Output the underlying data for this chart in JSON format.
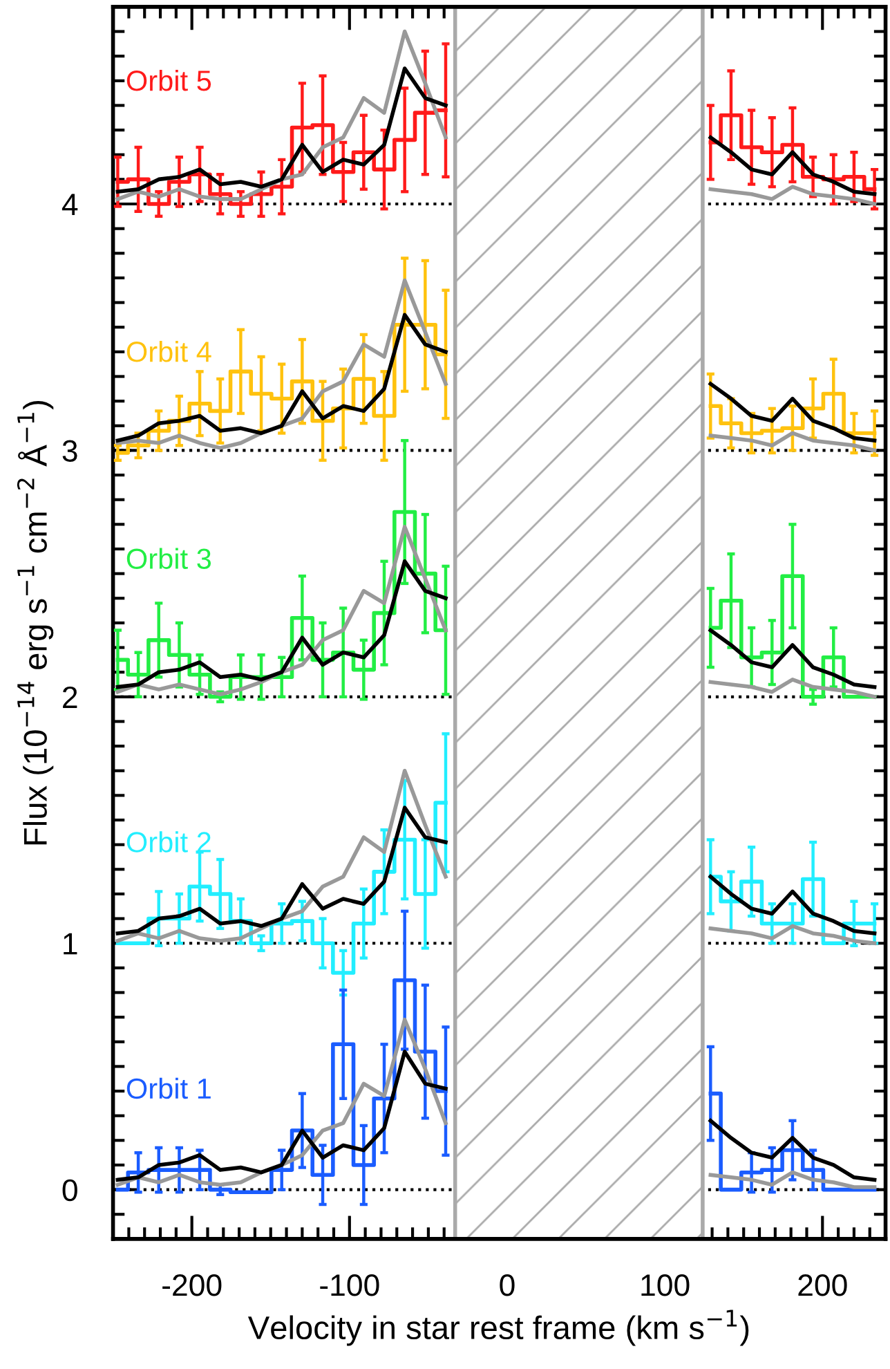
{
  "chart_data": {
    "type": "step",
    "xlabel": "Velocity in star rest frame (km s$^{−1}$)",
    "ylabel": "Flux (10$^{−14}$ erg s$^{−1}$ cm$^{−2}$ Å$^{−1}$)",
    "xlim": [
      -250,
      240
    ],
    "ylim": [
      -0.2,
      4.8
    ],
    "xticks": [
      -200,
      -100,
      0,
      100,
      200
    ],
    "yticks": [
      0,
      1,
      2,
      3,
      4
    ],
    "grid": false,
    "legend": false,
    "ref_lines": [
      {
        "axis": "y",
        "value": 0,
        "color": "#000000",
        "line_style": "dotted"
      },
      {
        "axis": "y",
        "value": 1,
        "color": "#000000",
        "line_style": "dotted"
      },
      {
        "axis": "y",
        "value": 2,
        "color": "#000000",
        "line_style": "dotted"
      },
      {
        "axis": "y",
        "value": 3,
        "color": "#000000",
        "line_style": "dotted"
      },
      {
        "axis": "y",
        "value": 4,
        "color": "#000000",
        "line_style": "dotted"
      }
    ],
    "bands": [
      {
        "axis": "x",
        "from": -33,
        "to": 124,
        "color": "#aaaaaa"
      }
    ],
    "series": [
      {
        "name": "Orbit 5",
        "color": "#ff1a1a",
        "x": [
          -247,
          -234,
          -221,
          -208,
          -195,
          -182,
          -169,
          -156,
          -143,
          -130,
          -117,
          -104,
          -91,
          -78,
          -65,
          -52,
          -39,
          45,
          129,
          142,
          155,
          168,
          181,
          194,
          207,
          220,
          233
        ],
        "values": [
          4.09,
          4.1,
          4.0,
          4.09,
          4.12,
          4.04,
          4.0,
          4.04,
          4.07,
          4.31,
          4.32,
          4.13,
          4.21,
          4.14,
          4.26,
          4.37,
          4.38,
          null,
          4.25,
          4.36,
          4.23,
          4.21,
          4.24,
          4.11,
          4.1,
          4.11,
          4.06
        ],
        "errors": [
          0.1,
          0.13,
          0.05,
          0.1,
          0.11,
          0.08,
          0.05,
          0.09,
          0.11,
          0.18,
          0.2,
          0.12,
          0.15,
          0.16,
          0.21,
          0.25,
          0.27,
          null,
          0.15,
          0.18,
          0.15,
          0.14,
          0.15,
          0.08,
          0.1,
          0.1,
          0.08
        ]
      },
      {
        "type": "line",
        "color": "#000000",
        "x": [
          -247,
          -234,
          -221,
          -208,
          -195,
          -182,
          -169,
          -156,
          -143,
          -130,
          -117,
          -104,
          -91,
          -78,
          -65,
          -52,
          -39,
          45,
          129,
          142,
          155,
          168,
          181,
          194,
          207,
          220,
          233
        ],
        "values": [
          4.05,
          4.06,
          4.1,
          4.11,
          4.14,
          4.08,
          4.09,
          4.07,
          4.1,
          4.24,
          4.13,
          4.18,
          4.16,
          4.24,
          4.55,
          4.43,
          4.4,
          null,
          4.27,
          4.21,
          4.14,
          4.12,
          4.21,
          4.12,
          4.09,
          4.05,
          4.04
        ]
      },
      {
        "type": "line",
        "color": "#999999",
        "x": [
          -247,
          -234,
          -221,
          -208,
          -195,
          -182,
          -169,
          -156,
          -143,
          -130,
          -117,
          -104,
          -91,
          -78,
          -65,
          -52,
          -39,
          45,
          129,
          142,
          155,
          168,
          181,
          194,
          207,
          220,
          233
        ],
        "values": [
          4.02,
          4.05,
          4.03,
          4.06,
          4.03,
          4.02,
          4.02,
          4.06,
          4.1,
          4.12,
          4.23,
          4.27,
          4.43,
          4.37,
          4.7,
          4.49,
          4.27,
          null,
          4.06,
          4.05,
          4.04,
          4.02,
          4.07,
          4.04,
          4.03,
          4.02,
          4.0
        ]
      },
      {
        "name": "Orbit 4",
        "color": "#ffc20e",
        "x": [
          -247,
          -234,
          -221,
          -208,
          -195,
          -182,
          -169,
          -156,
          -143,
          -130,
          -117,
          -104,
          -91,
          -78,
          -65,
          -52,
          -39,
          45,
          129,
          142,
          155,
          168,
          181,
          194,
          207,
          220,
          233
        ],
        "values": [
          2.99,
          3.02,
          3.08,
          3.12,
          3.19,
          3.16,
          3.32,
          3.23,
          3.21,
          3.28,
          3.12,
          3.17,
          3.29,
          3.14,
          3.51,
          3.51,
          3.39,
          null,
          3.18,
          3.11,
          3.07,
          3.08,
          3.09,
          3.17,
          3.23,
          3.07,
          3.07
        ],
        "errors": [
          0.03,
          0.05,
          0.08,
          0.1,
          0.13,
          0.13,
          0.17,
          0.15,
          0.14,
          0.17,
          0.16,
          0.16,
          0.18,
          0.18,
          0.27,
          0.26,
          0.26,
          null,
          0.13,
          0.1,
          0.08,
          0.09,
          0.09,
          0.12,
          0.14,
          0.08,
          0.09
        ]
      },
      {
        "type": "line",
        "color": "#000000",
        "x": [
          -247,
          -234,
          -221,
          -208,
          -195,
          -182,
          -169,
          -156,
          -143,
          -130,
          -117,
          -104,
          -91,
          -78,
          -65,
          -52,
          -39,
          45,
          129,
          142,
          155,
          168,
          181,
          194,
          207,
          220,
          233
        ],
        "values": [
          3.04,
          3.06,
          3.11,
          3.12,
          3.14,
          3.08,
          3.09,
          3.07,
          3.1,
          3.24,
          3.13,
          3.18,
          3.16,
          3.25,
          3.55,
          3.43,
          3.4,
          null,
          3.27,
          3.21,
          3.14,
          3.12,
          3.21,
          3.12,
          3.09,
          3.05,
          3.04
        ]
      },
      {
        "type": "line",
        "color": "#999999",
        "x": [
          -247,
          -234,
          -221,
          -208,
          -195,
          -182,
          -169,
          -156,
          -143,
          -130,
          -117,
          -104,
          -91,
          -78,
          -65,
          -52,
          -39,
          45,
          129,
          142,
          155,
          168,
          181,
          194,
          207,
          220,
          233
        ],
        "values": [
          3.03,
          3.04,
          3.03,
          3.06,
          3.03,
          3.01,
          3.03,
          3.07,
          3.1,
          3.13,
          3.24,
          3.28,
          3.43,
          3.38,
          3.69,
          3.48,
          3.27,
          null,
          3.06,
          3.05,
          3.04,
          3.02,
          3.07,
          3.04,
          3.03,
          3.02,
          3.0
        ]
      },
      {
        "name": "Orbit 3",
        "color": "#22ee44",
        "x": [
          -247,
          -234,
          -221,
          -208,
          -195,
          -182,
          -169,
          -156,
          -143,
          -130,
          -117,
          -104,
          -91,
          -78,
          -65,
          -52,
          -39,
          45,
          129,
          142,
          155,
          168,
          181,
          194,
          207,
          220,
          233
        ],
        "values": [
          2.15,
          2.09,
          2.23,
          2.17,
          2.09,
          2.0,
          2.08,
          2.08,
          2.08,
          2.32,
          2.15,
          2.18,
          2.11,
          2.34,
          2.75,
          2.5,
          2.27,
          null,
          2.28,
          2.39,
          2.16,
          2.18,
          2.49,
          2.0,
          2.16,
          2.0,
          2.0
        ],
        "errors": [
          0.12,
          0.09,
          0.15,
          0.13,
          0.08,
          0.02,
          0.09,
          0.09,
          0.08,
          0.17,
          0.15,
          0.18,
          0.12,
          0.21,
          0.29,
          0.24,
          0.26,
          null,
          0.16,
          0.19,
          0.12,
          0.13,
          0.21,
          0.03,
          0.12,
          null,
          null
        ]
      },
      {
        "type": "line",
        "color": "#000000",
        "x": [
          -247,
          -234,
          -221,
          -208,
          -195,
          -182,
          -169,
          -156,
          -143,
          -130,
          -117,
          -104,
          -91,
          -78,
          -65,
          -52,
          -39,
          45,
          129,
          142,
          155,
          168,
          181,
          194,
          207,
          220,
          233
        ],
        "values": [
          2.04,
          2.05,
          2.1,
          2.11,
          2.14,
          2.08,
          2.09,
          2.07,
          2.1,
          2.24,
          2.13,
          2.18,
          2.16,
          2.25,
          2.55,
          2.43,
          2.4,
          null,
          2.27,
          2.21,
          2.14,
          2.12,
          2.21,
          2.12,
          2.09,
          2.05,
          2.04
        ]
      },
      {
        "type": "line",
        "color": "#999999",
        "x": [
          -247,
          -234,
          -221,
          -208,
          -195,
          -182,
          -169,
          -156,
          -143,
          -130,
          -117,
          -104,
          -91,
          -78,
          -65,
          -52,
          -39,
          45,
          129,
          142,
          155,
          168,
          181,
          194,
          207,
          220,
          233
        ],
        "values": [
          2.02,
          2.05,
          2.03,
          2.05,
          2.03,
          2.01,
          2.03,
          2.06,
          2.1,
          2.13,
          2.23,
          2.27,
          2.43,
          2.38,
          2.69,
          2.48,
          2.27,
          null,
          2.06,
          2.05,
          2.04,
          2.02,
          2.07,
          2.04,
          2.03,
          2.02,
          2.0
        ]
      },
      {
        "name": "Orbit 2",
        "color": "#22eeff",
        "x": [
          -247,
          -234,
          -221,
          -208,
          -195,
          -182,
          -169,
          -156,
          -143,
          -130,
          -117,
          -104,
          -91,
          -78,
          -65,
          -52,
          -39,
          45,
          129,
          142,
          155,
          168,
          181,
          194,
          207,
          220,
          233
        ],
        "values": [
          1.0,
          1.0,
          1.1,
          1.1,
          1.23,
          1.2,
          1.09,
          1.0,
          1.08,
          1.09,
          1.0,
          0.88,
          1.08,
          1.29,
          1.42,
          1.2,
          1.57,
          null,
          1.27,
          1.17,
          1.25,
          1.08,
          1.08,
          1.26,
          1.0,
          1.08,
          1.08
        ],
        "errors": [
          null,
          null,
          0.11,
          0.1,
          0.14,
          0.14,
          0.09,
          0.03,
          0.08,
          0.08,
          0.1,
          0.09,
          0.14,
          0.17,
          0.24,
          0.22,
          0.28,
          null,
          0.15,
          0.12,
          0.14,
          0.08,
          0.08,
          0.15,
          null,
          0.09,
          0.08
        ]
      },
      {
        "type": "line",
        "color": "#000000",
        "x": [
          -247,
          -234,
          -221,
          -208,
          -195,
          -182,
          -169,
          -156,
          -143,
          -130,
          -117,
          -104,
          -91,
          -78,
          -65,
          -52,
          -39,
          45,
          129,
          142,
          155,
          168,
          181,
          194,
          207,
          220,
          233
        ],
        "values": [
          1.04,
          1.05,
          1.1,
          1.11,
          1.14,
          1.08,
          1.09,
          1.07,
          1.1,
          1.24,
          1.14,
          1.18,
          1.16,
          1.25,
          1.55,
          1.43,
          1.41,
          null,
          1.27,
          1.2,
          1.14,
          1.12,
          1.21,
          1.12,
          1.09,
          1.05,
          1.04
        ]
      },
      {
        "type": "line",
        "color": "#999999",
        "x": [
          -247,
          -234,
          -221,
          -208,
          -195,
          -182,
          -169,
          -156,
          -143,
          -130,
          -117,
          -104,
          -91,
          -78,
          -65,
          -52,
          -39,
          45,
          129,
          142,
          155,
          168,
          181,
          194,
          207,
          220,
          233
        ],
        "values": [
          1.01,
          1.04,
          1.02,
          1.05,
          1.02,
          1.01,
          1.02,
          1.06,
          1.1,
          1.13,
          1.23,
          1.27,
          1.43,
          1.37,
          1.7,
          1.48,
          1.27,
          null,
          1.06,
          1.05,
          1.04,
          1.02,
          1.07,
          1.04,
          1.03,
          1.01,
          1.0
        ]
      },
      {
        "name": "Orbit 1",
        "color": "#1a5cff",
        "x": [
          -247,
          -234,
          -221,
          -208,
          -195,
          -182,
          -169,
          -156,
          -143,
          -130,
          -117,
          -104,
          -91,
          -78,
          -65,
          -52,
          -39,
          45,
          129,
          142,
          155,
          168,
          181,
          194,
          207,
          220,
          233
        ],
        "values": [
          0.0,
          0.07,
          0.08,
          0.08,
          0.08,
          0.0,
          -0.01,
          -0.01,
          0.08,
          0.24,
          0.06,
          0.59,
          0.1,
          0.37,
          0.85,
          0.56,
          0.4,
          null,
          0.39,
          0.0,
          0.07,
          0.08,
          0.16,
          0.08,
          0.0,
          0.0,
          0.0
        ],
        "errors": [
          null,
          0.08,
          0.09,
          0.09,
          0.08,
          0.02,
          null,
          null,
          0.08,
          0.15,
          0.12,
          0.22,
          0.16,
          0.22,
          0.28,
          0.27,
          0.26,
          null,
          0.19,
          null,
          0.08,
          0.09,
          0.12,
          0.08,
          null,
          null,
          null
        ]
      },
      {
        "type": "line",
        "color": "#000000",
        "x": [
          -247,
          -234,
          -221,
          -208,
          -195,
          -182,
          -169,
          -156,
          -143,
          -130,
          -117,
          -104,
          -91,
          -78,
          -65,
          -52,
          -39,
          45,
          129,
          142,
          155,
          168,
          181,
          194,
          207,
          220,
          233
        ],
        "values": [
          0.04,
          0.05,
          0.1,
          0.11,
          0.14,
          0.08,
          0.09,
          0.07,
          0.1,
          0.24,
          0.13,
          0.18,
          0.16,
          0.25,
          0.56,
          0.43,
          0.41,
          null,
          0.28,
          0.21,
          0.15,
          0.13,
          0.21,
          0.13,
          0.1,
          0.05,
          0.04
        ]
      },
      {
        "type": "line",
        "color": "#999999",
        "x": [
          -247,
          -234,
          -221,
          -208,
          -195,
          -182,
          -169,
          -156,
          -143,
          -130,
          -117,
          -104,
          -91,
          -78,
          -65,
          -52,
          -39,
          45,
          129,
          142,
          155,
          168,
          181,
          194,
          207,
          220,
          233
        ],
        "values": [
          0.02,
          0.05,
          0.03,
          0.06,
          0.03,
          0.02,
          0.03,
          0.07,
          0.1,
          0.14,
          0.24,
          0.27,
          0.43,
          0.38,
          0.69,
          0.49,
          0.27,
          null,
          0.06,
          0.05,
          0.04,
          0.02,
          0.07,
          0.04,
          0.03,
          0.01,
          0.01
        ]
      }
    ]
  }
}
